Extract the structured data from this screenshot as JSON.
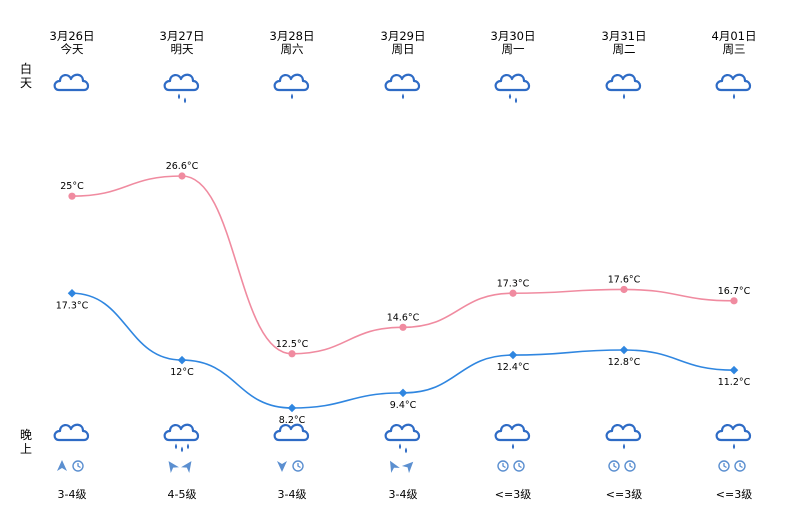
{
  "side_labels": {
    "day": "白天",
    "night": "晚上"
  },
  "days": [
    {
      "date": "3月26日",
      "weekday": "今天",
      "day_icon": "cloud-icon",
      "night_icon": "cloud-icon",
      "wind_icons": [
        "wind-arrow-icon",
        "clock-icon"
      ],
      "wind": "3-4级"
    },
    {
      "date": "3月27日",
      "weekday": "明天",
      "day_icon": "cloud-rain-icon",
      "night_icon": "cloud-rain-heavy-icon",
      "wind_icons": [
        "wind-arrow-icon",
        "wind-arrow-icon"
      ],
      "wind": "4-5级"
    },
    {
      "date": "3月28日",
      "weekday": "周六",
      "day_icon": "cloud-drizzle-icon",
      "night_icon": "cloud-icon",
      "wind_icons": [
        "wind-arrow-icon",
        "clock-icon"
      ],
      "wind": "3-4级"
    },
    {
      "date": "3月29日",
      "weekday": "周日",
      "day_icon": "cloud-drizzle-icon",
      "night_icon": "cloud-rain-icon",
      "wind_icons": [
        "wind-arrow-icon",
        "wind-arrow-icon"
      ],
      "wind": "3-4级"
    },
    {
      "date": "3月30日",
      "weekday": "周一",
      "day_icon": "cloud-rain-icon",
      "night_icon": "cloud-drizzle-icon",
      "wind_icons": [
        "clock-icon",
        "clock-icon"
      ],
      "wind": "<=3级"
    },
    {
      "date": "3月31日",
      "weekday": "周二",
      "day_icon": "cloud-drizzle-icon",
      "night_icon": "cloud-drizzle-icon",
      "wind_icons": [
        "clock-icon",
        "clock-icon"
      ],
      "wind": "<=3级"
    },
    {
      "date": "4月01日",
      "weekday": "周三",
      "day_icon": "cloud-drizzle-icon",
      "night_icon": "cloud-drizzle-icon",
      "wind_icons": [
        "clock-icon",
        "clock-icon"
      ],
      "wind": "<=3级"
    }
  ],
  "chart_data": {
    "type": "line",
    "x": [
      "3月26日",
      "3月27日",
      "3月28日",
      "3月29日",
      "3月30日",
      "3月31日",
      "4月01日"
    ],
    "series": [
      {
        "values": [
          25,
          26.6,
          12.5,
          14.6,
          17.3,
          17.6,
          16.7
        ],
        "labels": [
          "25°C",
          "26.6°C",
          "12.5°C",
          "14.6°C",
          "17.3°C",
          "17.6°C",
          "16.7°C"
        ],
        "color": "#f08ba0",
        "marker": "circle"
      },
      {
        "values": [
          17.3,
          12,
          8.2,
          9.4,
          12.4,
          12.8,
          11.2
        ],
        "labels": [
          "17.3°C",
          "12°C",
          "8.2°C",
          "9.4°C",
          "12.4°C",
          "12.8°C",
          "11.2°C"
        ],
        "color": "#2f86e0",
        "marker": "diamond"
      }
    ],
    "ylim": [
      6,
      28
    ],
    "grid": false,
    "legend": "none"
  },
  "colors": {
    "icon": "#2e6bc5",
    "wind_icon": "#5b8fd0"
  }
}
